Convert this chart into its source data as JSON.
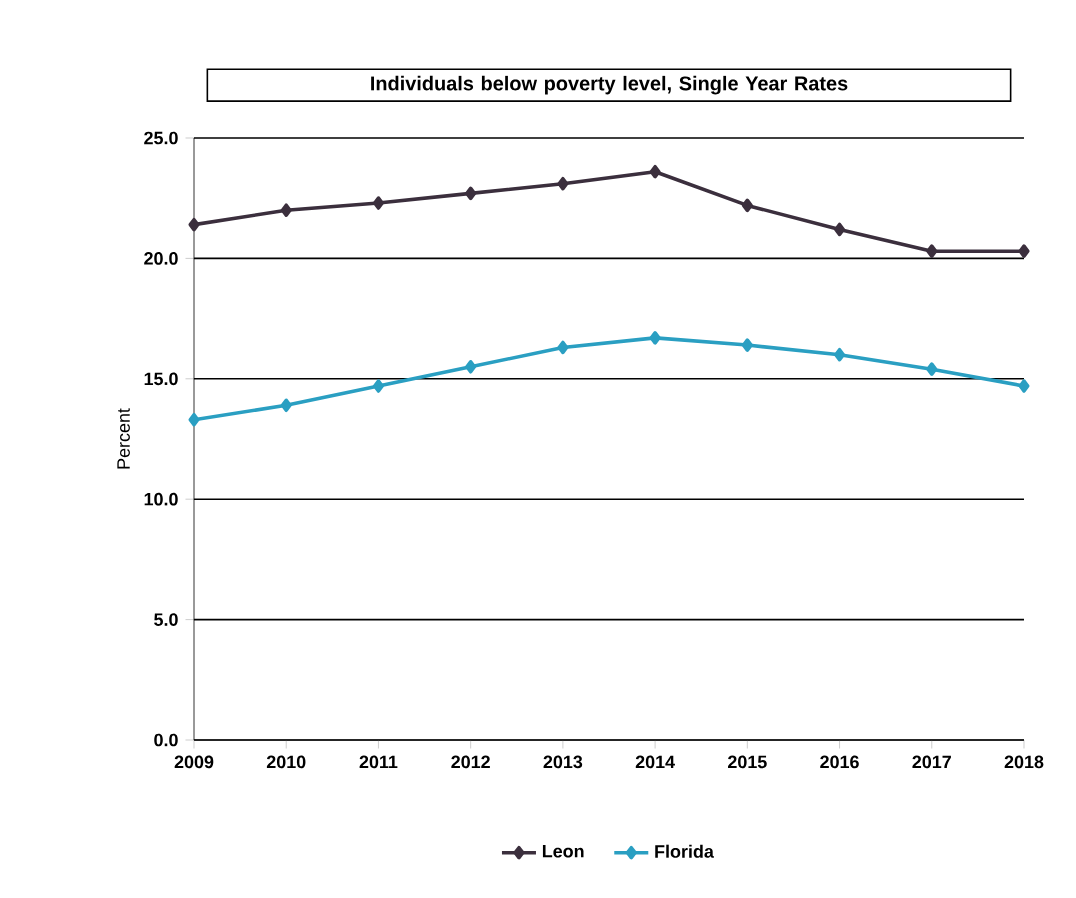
{
  "chart_data": {
    "type": "line",
    "title": "Individuals below poverty level, Single Year Rates",
    "ylabel": "Percent",
    "x": [
      2009,
      2010,
      2011,
      2012,
      2013,
      2014,
      2015,
      2016,
      2017,
      2018
    ],
    "series": [
      {
        "name": "Leon",
        "color": "#3b2f3d",
        "values": [
          21.4,
          22.0,
          22.3,
          22.7,
          23.1,
          23.6,
          22.2,
          21.2,
          20.3,
          20.3
        ]
      },
      {
        "name": "Florida",
        "color": "#2a9fc2",
        "values": [
          13.3,
          13.9,
          14.7,
          15.5,
          16.3,
          16.7,
          16.4,
          16.0,
          15.4,
          14.7
        ]
      }
    ],
    "xlim": [
      2009,
      2018
    ],
    "xticks": [
      2009,
      2010,
      2011,
      2012,
      2013,
      2014,
      2015,
      2016,
      2017,
      2018
    ],
    "ylim": [
      0,
      25
    ],
    "yticks": [
      {
        "value": 0,
        "label": "0.0"
      },
      {
        "value": 5,
        "label": "5.0"
      },
      {
        "value": 10,
        "label": "10.0"
      },
      {
        "value": 15,
        "label": "15.0"
      },
      {
        "value": 20,
        "label": "20.0"
      },
      {
        "value": 25,
        "label": "25.0"
      }
    ],
    "grid": "y",
    "legend": "bottom",
    "marker": "diamond",
    "line_style": "solid"
  }
}
